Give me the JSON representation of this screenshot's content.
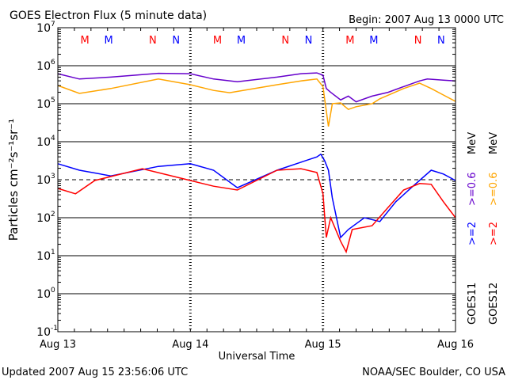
{
  "chart_data": {
    "type": "line",
    "title": "GOES Electron Flux (5 minute data)",
    "begin": "Begin: 2007 Aug 13 0000 UTC",
    "xlabel": "Universal Time",
    "ylabel": "Particles cm⁻²s⁻¹sr⁻¹",
    "x_unit": "hours since 2007 Aug 13 0000 UTC",
    "xlim": [
      0,
      72
    ],
    "x_ticks": [
      {
        "h": 0,
        "label": "Aug 13"
      },
      {
        "h": 24,
        "label": "Aug 14"
      },
      {
        "h": 48,
        "label": "Aug 15"
      },
      {
        "h": 72,
        "label": "Aug 16"
      }
    ],
    "y_scale": "log10",
    "ylim_log10": [
      -1,
      7
    ],
    "y_ticks": [
      {
        "base": "10",
        "exp": "7"
      },
      {
        "base": "10",
        "exp": "6"
      },
      {
        "base": "10",
        "exp": "5"
      },
      {
        "base": "10",
        "exp": "4"
      },
      {
        "base": "10",
        "exp": "3"
      },
      {
        "base": "10",
        "exp": "2"
      },
      {
        "base": "10",
        "exp": "1"
      },
      {
        "base": "10",
        "exp": "0"
      },
      {
        "base": "10",
        "exp": "-1"
      }
    ],
    "markers": [
      {
        "h": 4.9,
        "label": "M",
        "color": "#ff0000"
      },
      {
        "h": 9.2,
        "label": "M",
        "color": "#0000ff"
      },
      {
        "h": 17.2,
        "label": "N",
        "color": "#ff0000"
      },
      {
        "h": 21.4,
        "label": "N",
        "color": "#0000ff"
      },
      {
        "h": 28.9,
        "label": "M",
        "color": "#ff0000"
      },
      {
        "h": 33.2,
        "label": "M",
        "color": "#0000ff"
      },
      {
        "h": 41.2,
        "label": "N",
        "color": "#ff0000"
      },
      {
        "h": 45.4,
        "label": "N",
        "color": "#0000ff"
      },
      {
        "h": 52.9,
        "label": "M",
        "color": "#ff0000"
      },
      {
        "h": 57.2,
        "label": "M",
        "color": "#0000ff"
      },
      {
        "h": 65.2,
        "label": "N",
        "color": "#ff0000"
      },
      {
        "h": 69.4,
        "label": "N",
        "color": "#0000ff"
      }
    ],
    "series": [
      {
        "name": "GOES11 >=0.6 MeV",
        "color": "#6600cc",
        "h": [
          0,
          3.9,
          9.6,
          18.2,
          24,
          28.2,
          32.5,
          39.7,
          44,
          46.9,
          48,
          48.6,
          49.4,
          51.2,
          52.6,
          54,
          56.9,
          59.8,
          62.6,
          65.5,
          66.9,
          69.8,
          72
        ],
        "log10": [
          5.79,
          5.65,
          5.7,
          5.8,
          5.79,
          5.65,
          5.58,
          5.7,
          5.79,
          5.81,
          5.75,
          5.4,
          5.3,
          5.1,
          5.2,
          5.05,
          5.2,
          5.3,
          5.45,
          5.6,
          5.65,
          5.62,
          5.6
        ]
      },
      {
        "name": "GOES12 >=0.6 MeV",
        "color": "#ffa500",
        "h": [
          0,
          3.9,
          9.6,
          18.2,
          24,
          28.2,
          31.1,
          39.7,
          44,
          46.9,
          48,
          48.3,
          49,
          49.7,
          51.2,
          52.6,
          54,
          56.9,
          58.3,
          62.6,
          65.5,
          67.6,
          69.8,
          72
        ],
        "log10": [
          5.48,
          5.27,
          5.4,
          5.65,
          5.5,
          5.35,
          5.29,
          5.5,
          5.6,
          5.65,
          5.45,
          5.13,
          4.4,
          5.0,
          5.02,
          4.85,
          4.92,
          5.0,
          5.13,
          5.4,
          5.54,
          5.4,
          5.23,
          5.06
        ]
      },
      {
        "name": "GOES11 >=2 MeV",
        "color": "#0000ff",
        "h": [
          0,
          3.9,
          9.6,
          18.2,
          24,
          28.2,
          32.5,
          39.7,
          44,
          46.9,
          47.6,
          48.3,
          49,
          49.7,
          51.2,
          52.6,
          55.5,
          58.3,
          61.2,
          64,
          67.6,
          69.8,
          72
        ],
        "log10": [
          3.42,
          3.25,
          3.1,
          3.35,
          3.42,
          3.25,
          2.79,
          3.25,
          3.46,
          3.6,
          3.67,
          3.5,
          3.25,
          2.52,
          1.48,
          1.69,
          2.0,
          1.9,
          2.42,
          2.79,
          3.25,
          3.15,
          2.98
        ]
      },
      {
        "name": "GOES12 >=2 MeV",
        "color": "#ff0000",
        "h": [
          0,
          3.2,
          6.7,
          15.3,
          24,
          28.2,
          32.5,
          39.7,
          44,
          46.9,
          48,
          48.6,
          49.4,
          51.2,
          52.2,
          53.3,
          56.9,
          59.8,
          62.6,
          65.5,
          67.6,
          69.8,
          72
        ],
        "log10": [
          2.77,
          2.63,
          2.98,
          3.29,
          2.98,
          2.83,
          2.73,
          3.25,
          3.29,
          3.19,
          2.63,
          1.48,
          2.0,
          1.38,
          1.1,
          1.69,
          1.79,
          2.27,
          2.73,
          2.9,
          2.88,
          2.42,
          2.0
        ]
      }
    ],
    "legend_right": [
      {
        "text": "GOES11",
        "color": "#000000"
      },
      {
        "text": ">=2",
        "color": "#0000ff"
      },
      {
        "text": ">=0.6",
        "color": "#6600cc"
      },
      {
        "text": "MeV",
        "color": "#000000"
      },
      {
        "text": "GOES12",
        "color": "#000000"
      },
      {
        "text": ">=2",
        "color": "#ff0000"
      },
      {
        "text": ">=0.6",
        "color": "#ffa500"
      },
      {
        "text": "MeV",
        "color": "#000000"
      }
    ]
  },
  "footer": {
    "updated": "Updated 2007 Aug 15 23:56:06 UTC",
    "source": "NOAA/SEC Boulder, CO USA"
  }
}
